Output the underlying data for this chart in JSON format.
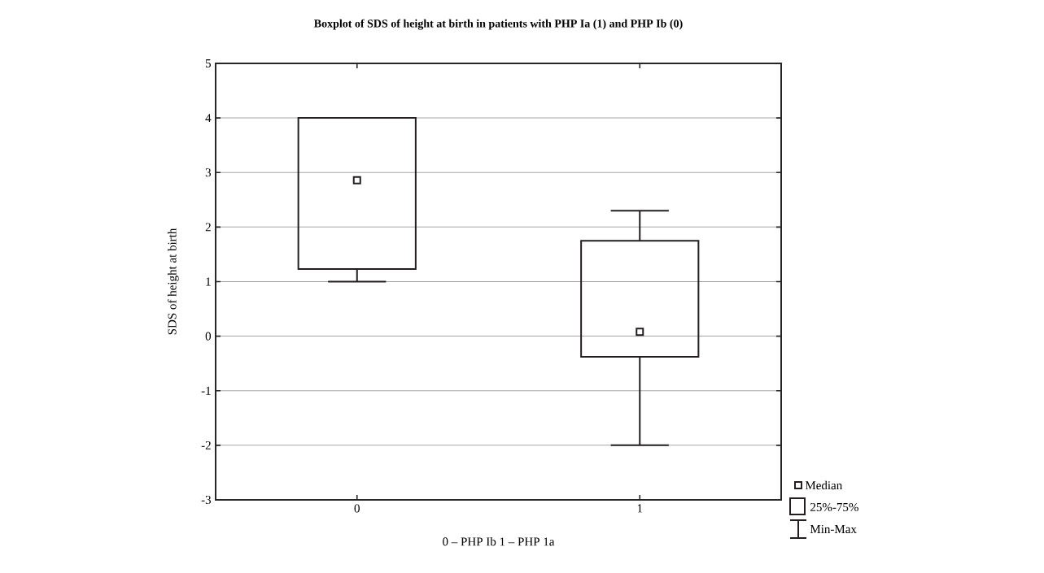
{
  "chart_data": {
    "type": "box",
    "title": "Boxplot of SDS of height at birth in patients with PHP Ia (1) and PHP Ib (0)",
    "xlabel": "0 – PHP Ib      1 – PHP 1a",
    "ylabel": "SDS of height at birth",
    "categories": [
      "0",
      "1"
    ],
    "color": "#231f20",
    "boxes": [
      {
        "low": 1.0,
        "q1": 1.23,
        "median": 2.86,
        "q3": 4.0,
        "high": 4.0
      },
      {
        "low": -2.0,
        "q1": -0.38,
        "median": 0.08,
        "q3": 1.75,
        "high": 2.3
      }
    ],
    "ylim": [
      -3,
      5
    ],
    "yticks": [
      -3,
      -2,
      -1,
      0,
      1,
      2,
      3,
      4,
      5
    ],
    "grid": "y",
    "marker": "square",
    "annotations": [
      "Median",
      "25%-75%",
      "Min-Max"
    ]
  }
}
